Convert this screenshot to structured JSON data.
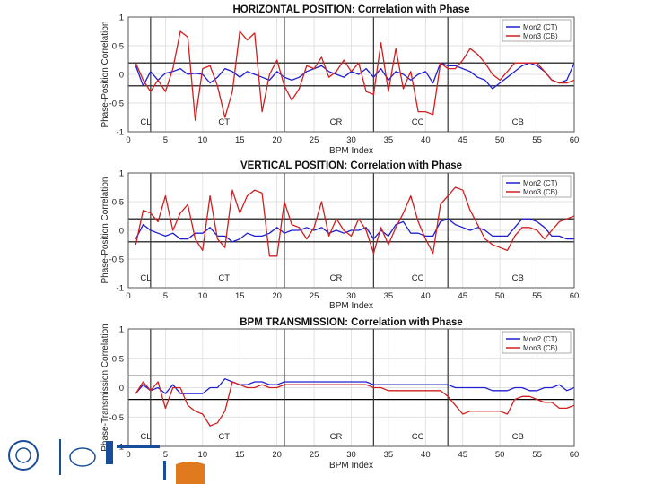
{
  "colors": {
    "mon2": "#1f1fd1",
    "mon3": "#d11f1f",
    "threshold": "#000000",
    "divider": "#333333",
    "grid": "#d8d8d8"
  },
  "chart_data": [
    {
      "type": "line",
      "title": "HORIZONTAL POSITION: Correlation with Phase",
      "xlabel": "BPM Index",
      "ylabel": "Phase-Position Correlation",
      "xlim": [
        0,
        60
      ],
      "ylim": [
        -1,
        1
      ],
      "xticks": [
        "0",
        "5",
        "10",
        "15",
        "20",
        "25",
        "30",
        "35",
        "40",
        "45",
        "50",
        "55",
        "60"
      ],
      "yticks": [
        "-1",
        "-0.5",
        "0",
        "0.5",
        "1"
      ],
      "threshold_lines": [
        0.2,
        -0.2
      ],
      "dividers": [
        3,
        21,
        33,
        43
      ],
      "regions": [
        {
          "label": "CL",
          "x": 1.5
        },
        {
          "label": "CT",
          "x": 12
        },
        {
          "label": "CR",
          "x": 27
        },
        {
          "label": "CC",
          "x": 38
        },
        {
          "label": "CB",
          "x": 51.5
        }
      ],
      "legend": [
        "Mon2 (CT)",
        "Mon3 (CB)"
      ],
      "series": [
        {
          "name": "Mon2 (CT)",
          "color": "mon2",
          "x": [
            1,
            2,
            3,
            4,
            5,
            6,
            7,
            8,
            9,
            10,
            11,
            12,
            13,
            14,
            15,
            16,
            17,
            18,
            19,
            20,
            21,
            22,
            23,
            24,
            25,
            26,
            27,
            28,
            29,
            30,
            31,
            32,
            33,
            34,
            35,
            36,
            37,
            38,
            39,
            40,
            41,
            42,
            43,
            44,
            45,
            46,
            47,
            48,
            49,
            50,
            51,
            52,
            53,
            54,
            55,
            56,
            57,
            58,
            59,
            60
          ],
          "y": [
            0.15,
            -0.2,
            0.05,
            -0.1,
            0.02,
            0.05,
            0.1,
            0.0,
            0.02,
            0.0,
            -0.15,
            -0.05,
            0.1,
            0.05,
            -0.05,
            0.05,
            0.0,
            -0.05,
            -0.1,
            0.05,
            -0.05,
            -0.1,
            -0.05,
            0.05,
            0.1,
            0.15,
            0.05,
            0.0,
            -0.05,
            0.05,
            0.0,
            0.1,
            -0.05,
            0.1,
            -0.1,
            0.05,
            0.0,
            -0.1,
            0.0,
            0.05,
            -0.15,
            0.2,
            0.15,
            0.15,
            0.1,
            0.05,
            -0.05,
            -0.1,
            -0.25,
            -0.15,
            -0.05,
            0.05,
            0.15,
            0.2,
            0.15,
            0.05,
            -0.1,
            -0.15,
            -0.1,
            0.2
          ]
        },
        {
          "name": "Mon3 (CB)",
          "color": "mon3",
          "x": [
            1,
            2,
            3,
            4,
            5,
            6,
            7,
            8,
            9,
            10,
            11,
            12,
            13,
            14,
            15,
            16,
            17,
            18,
            19,
            20,
            21,
            22,
            23,
            24,
            25,
            26,
            27,
            28,
            29,
            30,
            31,
            32,
            33,
            34,
            35,
            36,
            37,
            38,
            39,
            40,
            41,
            42,
            43,
            44,
            45,
            46,
            47,
            48,
            49,
            50,
            51,
            52,
            53,
            54,
            55,
            56,
            57,
            58,
            59,
            60
          ],
          "y": [
            0.2,
            -0.1,
            -0.3,
            -0.1,
            -0.3,
            0.1,
            0.75,
            0.65,
            -0.8,
            0.1,
            0.15,
            -0.2,
            -0.75,
            -0.3,
            0.75,
            0.6,
            0.72,
            -0.65,
            0.0,
            0.25,
            -0.2,
            -0.45,
            -0.25,
            0.15,
            0.1,
            0.3,
            -0.05,
            0.05,
            0.25,
            0.05,
            0.2,
            -0.3,
            -0.35,
            0.55,
            -0.3,
            0.45,
            -0.25,
            0.05,
            -0.65,
            -0.65,
            -0.7,
            0.2,
            0.1,
            0.1,
            0.25,
            0.45,
            0.35,
            0.2,
            0.0,
            -0.1,
            0.05,
            0.2,
            0.2,
            0.2,
            0.2,
            0.05,
            -0.1,
            -0.15,
            -0.15,
            -0.1
          ]
        }
      ]
    },
    {
      "type": "line",
      "title": "VERTICAL POSITION: Correlation with Phase",
      "xlabel": "BPM Index",
      "ylabel": "Phase-Position Correlation",
      "xlim": [
        0,
        60
      ],
      "ylim": [
        -1,
        1
      ],
      "xticks": [
        "0",
        "5",
        "10",
        "15",
        "20",
        "25",
        "30",
        "35",
        "40",
        "45",
        "50",
        "55",
        "60"
      ],
      "yticks": [
        "-1",
        "-0.5",
        "0",
        "0.5",
        "1"
      ],
      "threshold_lines": [
        0.2,
        -0.2
      ],
      "dividers": [
        3,
        21,
        33,
        43
      ],
      "regions": [
        {
          "label": "CL",
          "x": 1.5
        },
        {
          "label": "CT",
          "x": 12
        },
        {
          "label": "CR",
          "x": 27
        },
        {
          "label": "CC",
          "x": 38
        },
        {
          "label": "CB",
          "x": 51.5
        }
      ],
      "legend": [
        "Mon2 (CT)",
        "Mon3 (CB)"
      ],
      "series": [
        {
          "name": "Mon2 (CT)",
          "color": "mon2",
          "x": [
            1,
            2,
            3,
            4,
            5,
            6,
            7,
            8,
            9,
            10,
            11,
            12,
            13,
            14,
            15,
            16,
            17,
            18,
            19,
            20,
            21,
            22,
            23,
            24,
            25,
            26,
            27,
            28,
            29,
            30,
            31,
            32,
            33,
            34,
            35,
            36,
            37,
            38,
            39,
            40,
            41,
            42,
            43,
            44,
            45,
            46,
            47,
            48,
            49,
            50,
            51,
            52,
            53,
            54,
            55,
            56,
            57,
            58,
            59,
            60
          ],
          "y": [
            -0.15,
            0.1,
            0.0,
            -0.05,
            -0.1,
            -0.05,
            -0.15,
            -0.15,
            -0.05,
            -0.05,
            0.05,
            -0.1,
            -0.1,
            -0.2,
            -0.15,
            -0.05,
            -0.1,
            -0.1,
            -0.05,
            0.05,
            -0.05,
            0.0,
            0.0,
            0.05,
            0.0,
            0.05,
            -0.05,
            0.0,
            -0.05,
            0.0,
            0.0,
            0.05,
            -0.15,
            0.0,
            -0.1,
            0.1,
            0.15,
            -0.05,
            -0.05,
            -0.1,
            -0.1,
            0.15,
            0.2,
            0.1,
            0.05,
            0.0,
            0.05,
            0.0,
            -0.1,
            -0.1,
            -0.1,
            0.05,
            0.2,
            0.2,
            0.15,
            0.05,
            -0.1,
            -0.1,
            -0.15,
            -0.15
          ]
        },
        {
          "name": "Mon3 (CB)",
          "color": "mon3",
          "x": [
            1,
            2,
            3,
            4,
            5,
            6,
            7,
            8,
            9,
            10,
            11,
            12,
            13,
            14,
            15,
            16,
            17,
            18,
            19,
            20,
            21,
            22,
            23,
            24,
            25,
            26,
            27,
            28,
            29,
            30,
            31,
            32,
            33,
            34,
            35,
            36,
            37,
            38,
            39,
            40,
            41,
            42,
            43,
            44,
            45,
            46,
            47,
            48,
            49,
            50,
            51,
            52,
            53,
            54,
            55,
            56,
            57,
            58,
            59,
            60
          ],
          "y": [
            -0.25,
            0.35,
            0.3,
            0.15,
            0.6,
            0.0,
            0.3,
            0.45,
            -0.15,
            -0.35,
            0.6,
            -0.15,
            -0.3,
            0.7,
            0.3,
            0.6,
            0.7,
            0.65,
            -0.45,
            -0.45,
            0.5,
            0.1,
            0.05,
            -0.15,
            0.05,
            0.5,
            -0.1,
            0.2,
            0.0,
            -0.1,
            0.2,
            0.0,
            -0.4,
            0.05,
            -0.25,
            0.05,
            0.3,
            0.6,
            0.15,
            -0.15,
            -0.4,
            0.45,
            0.6,
            0.75,
            0.7,
            0.35,
            0.1,
            -0.15,
            -0.25,
            -0.3,
            -0.35,
            -0.1,
            0.05,
            0.05,
            0.0,
            -0.15,
            0.0,
            0.15,
            0.2,
            0.25
          ]
        }
      ]
    },
    {
      "type": "line",
      "title": "BPM TRANSMISSION: Correlation with Phase",
      "xlabel": "BPM Index",
      "ylabel": "Phase-Transmission Correlation",
      "xlim": [
        0,
        60
      ],
      "ylim": [
        -1,
        1
      ],
      "xticks": [
        "0",
        "5",
        "10",
        "15",
        "20",
        "25",
        "30",
        "35",
        "40",
        "45",
        "50",
        "55",
        "60"
      ],
      "yticks": [
        "-1",
        "-0.5",
        "0",
        "0.5",
        "1"
      ],
      "threshold_lines": [
        0.2,
        -0.2
      ],
      "dividers": [
        3,
        21,
        33,
        43
      ],
      "regions": [
        {
          "label": "CL",
          "x": 1.5
        },
        {
          "label": "CT",
          "x": 12
        },
        {
          "label": "CR",
          "x": 27
        },
        {
          "label": "CC",
          "x": 38
        },
        {
          "label": "CB",
          "x": 51.5
        }
      ],
      "legend": [
        "Mon2 (CT)",
        "Mon3 (CB)"
      ],
      "series": [
        {
          "name": "Mon2 (CT)",
          "color": "mon2",
          "x": [
            1,
            2,
            3,
            4,
            5,
            6,
            7,
            8,
            9,
            10,
            11,
            12,
            13,
            14,
            15,
            16,
            17,
            18,
            19,
            20,
            21,
            22,
            23,
            24,
            25,
            26,
            27,
            28,
            29,
            30,
            31,
            32,
            33,
            34,
            35,
            36,
            37,
            38,
            39,
            40,
            41,
            42,
            43,
            44,
            45,
            46,
            47,
            48,
            49,
            50,
            51,
            52,
            53,
            54,
            55,
            56,
            57,
            58,
            59,
            60
          ],
          "y": [
            -0.1,
            0.05,
            -0.05,
            0.0,
            -0.1,
            0.05,
            -0.1,
            -0.1,
            -0.1,
            -0.1,
            0.0,
            0.0,
            0.15,
            0.1,
            0.05,
            0.05,
            0.1,
            0.1,
            0.05,
            0.05,
            0.1,
            0.1,
            0.1,
            0.1,
            0.1,
            0.1,
            0.1,
            0.1,
            0.1,
            0.1,
            0.1,
            0.1,
            0.05,
            0.05,
            0.05,
            0.05,
            0.05,
            0.05,
            0.05,
            0.05,
            0.05,
            0.05,
            0.05,
            0.0,
            0.0,
            0.0,
            0.0,
            0.0,
            -0.05,
            -0.05,
            -0.05,
            0.0,
            0.0,
            -0.05,
            -0.05,
            0.0,
            0.0,
            0.05,
            -0.05,
            0.0
          ]
        },
        {
          "name": "Mon3 (CB)",
          "color": "mon3",
          "x": [
            1,
            2,
            3,
            4,
            5,
            6,
            7,
            8,
            9,
            10,
            11,
            12,
            13,
            14,
            15,
            16,
            17,
            18,
            19,
            20,
            21,
            22,
            23,
            24,
            25,
            26,
            27,
            28,
            29,
            30,
            31,
            32,
            33,
            34,
            35,
            36,
            37,
            38,
            39,
            40,
            41,
            42,
            43,
            44,
            45,
            46,
            47,
            48,
            49,
            50,
            51,
            52,
            53,
            54,
            55,
            56,
            57,
            58,
            59,
            60
          ],
          "y": [
            -0.1,
            0.1,
            -0.05,
            0.1,
            -0.35,
            0.0,
            0.0,
            -0.3,
            -0.4,
            -0.45,
            -0.65,
            -0.6,
            -0.4,
            0.1,
            0.05,
            0.0,
            0.0,
            0.05,
            0.0,
            0.0,
            0.05,
            0.05,
            0.05,
            0.05,
            0.05,
            0.05,
            0.05,
            0.05,
            0.05,
            0.05,
            0.05,
            0.05,
            0.0,
            0.0,
            -0.05,
            -0.05,
            -0.05,
            -0.05,
            -0.05,
            -0.05,
            -0.05,
            -0.05,
            -0.15,
            -0.3,
            -0.45,
            -0.4,
            -0.4,
            -0.4,
            -0.4,
            -0.4,
            -0.45,
            -0.2,
            -0.15,
            -0.15,
            -0.2,
            -0.25,
            -0.25,
            -0.35,
            -0.35,
            -0.3
          ]
        }
      ]
    }
  ]
}
